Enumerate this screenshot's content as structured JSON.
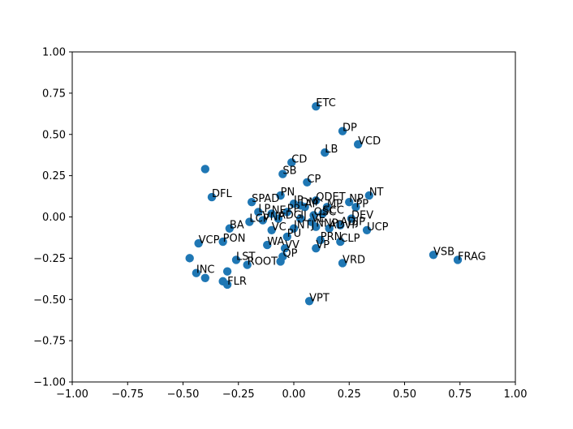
{
  "chart_data": {
    "type": "scatter",
    "color": "#1f77b4",
    "xlim": [
      -1.0,
      1.0
    ],
    "ylim": [
      -1.0,
      1.0
    ],
    "grid": false,
    "xticks": [
      "−1.00",
      "−0.75",
      "−0.50",
      "−0.25",
      "0.00",
      "0.25",
      "0.50",
      "0.75",
      "1.00"
    ],
    "yticks": [
      "−1.00",
      "−0.75",
      "−0.50",
      "−0.25",
      "0.00",
      "0.25",
      "0.50",
      "0.75",
      "1.00"
    ],
    "xtick_values": [
      -1.0,
      -0.75,
      -0.5,
      -0.25,
      0.0,
      0.25,
      0.5,
      0.75,
      1.0
    ],
    "ytick_values": [
      -1.0,
      -0.75,
      -0.5,
      -0.25,
      0.0,
      0.25,
      0.5,
      0.75,
      1.0
    ],
    "points": [
      {
        "label": "ETC",
        "x": 0.1,
        "y": 0.67
      },
      {
        "label": "DP",
        "x": 0.22,
        "y": 0.52
      },
      {
        "label": "VCD",
        "x": 0.29,
        "y": 0.44
      },
      {
        "label": "LB",
        "x": 0.14,
        "y": 0.39
      },
      {
        "label": "CD",
        "x": -0.01,
        "y": 0.33
      },
      {
        "label": "",
        "x": -0.4,
        "y": 0.29
      },
      {
        "label": "SB",
        "x": -0.05,
        "y": 0.26
      },
      {
        "label": "CP",
        "x": 0.06,
        "y": 0.21
      },
      {
        "label": "PN",
        "x": -0.06,
        "y": 0.13
      },
      {
        "label": "DFL",
        "x": -0.37,
        "y": 0.12
      },
      {
        "label": "NT",
        "x": 0.34,
        "y": 0.13
      },
      {
        "label": "SPAD",
        "x": -0.19,
        "y": 0.09
      },
      {
        "label": "QDET",
        "x": 0.1,
        "y": 0.1
      },
      {
        "label": "NP",
        "x": 0.25,
        "y": 0.09
      },
      {
        "label": "PP",
        "x": 0.28,
        "y": 0.06
      },
      {
        "label": "IP",
        "x": 0.0,
        "y": 0.08
      },
      {
        "label": "DM",
        "x": 0.03,
        "y": 0.07
      },
      {
        "label": "AP",
        "x": 0.05,
        "y": 0.06
      },
      {
        "label": "MP",
        "x": 0.15,
        "y": 0.06
      },
      {
        "label": "LP",
        "x": -0.16,
        "y": 0.03
      },
      {
        "label": "NE",
        "x": -0.1,
        "y": 0.02
      },
      {
        "label": "PP",
        "x": -0.03,
        "y": 0.03
      },
      {
        "label": "OSC",
        "x": 0.09,
        "y": 0.01
      },
      {
        "label": "SCC",
        "x": 0.13,
        "y": 0.02
      },
      {
        "label": "LCP",
        "x": -0.2,
        "y": -0.03
      },
      {
        "label": "VNP",
        "x": -0.14,
        "y": -0.02
      },
      {
        "label": "ADG",
        "x": -0.07,
        "y": -0.01
      },
      {
        "label": "IJ",
        "x": 0.03,
        "y": -0.01
      },
      {
        "label": "VE",
        "x": 0.08,
        "y": -0.03
      },
      {
        "label": "DEV",
        "x": 0.26,
        "y": -0.01
      },
      {
        "label": "ADJP",
        "x": 0.21,
        "y": -0.05
      },
      {
        "label": "UCP",
        "x": 0.33,
        "y": -0.08
      },
      {
        "label": "BA",
        "x": -0.29,
        "y": -0.07
      },
      {
        "label": "VC",
        "x": -0.1,
        "y": -0.08
      },
      {
        "label": "INTJ",
        "x": 0.0,
        "y": -0.07
      },
      {
        "label": "NNP",
        "x": 0.1,
        "y": -0.06
      },
      {
        "label": "ADVP",
        "x": 0.16,
        "y": -0.07
      },
      {
        "label": "PU",
        "x": -0.03,
        "y": -0.12
      },
      {
        "label": "CLP",
        "x": 0.21,
        "y": -0.15
      },
      {
        "label": "VCP",
        "x": -0.43,
        "y": -0.16
      },
      {
        "label": "PON",
        "x": -0.32,
        "y": -0.15
      },
      {
        "label": "PRN",
        "x": 0.12,
        "y": -0.14
      },
      {
        "label": "WA",
        "x": -0.12,
        "y": -0.17
      },
      {
        "label": "VV",
        "x": -0.04,
        "y": -0.19
      },
      {
        "label": "VP",
        "x": 0.1,
        "y": -0.19
      },
      {
        "label": "QP",
        "x": -0.05,
        "y": -0.24
      },
      {
        "label": "LST",
        "x": -0.26,
        "y": -0.26
      },
      {
        "label": "ROOT",
        "x": -0.21,
        "y": -0.29
      },
      {
        "label": "",
        "x": -0.06,
        "y": -0.27
      },
      {
        "label": "VRD",
        "x": 0.22,
        "y": -0.28
      },
      {
        "label": "VSB",
        "x": 0.63,
        "y": -0.23
      },
      {
        "label": "FRAG",
        "x": 0.74,
        "y": -0.26
      },
      {
        "label": "",
        "x": -0.47,
        "y": -0.25
      },
      {
        "label": "INC",
        "x": -0.44,
        "y": -0.34
      },
      {
        "label": "",
        "x": -0.4,
        "y": -0.37
      },
      {
        "label": "",
        "x": -0.32,
        "y": -0.39
      },
      {
        "label": "FLR",
        "x": -0.3,
        "y": -0.41
      },
      {
        "label": "",
        "x": -0.3,
        "y": -0.33
      },
      {
        "label": "VPT",
        "x": 0.07,
        "y": -0.51
      }
    ]
  }
}
